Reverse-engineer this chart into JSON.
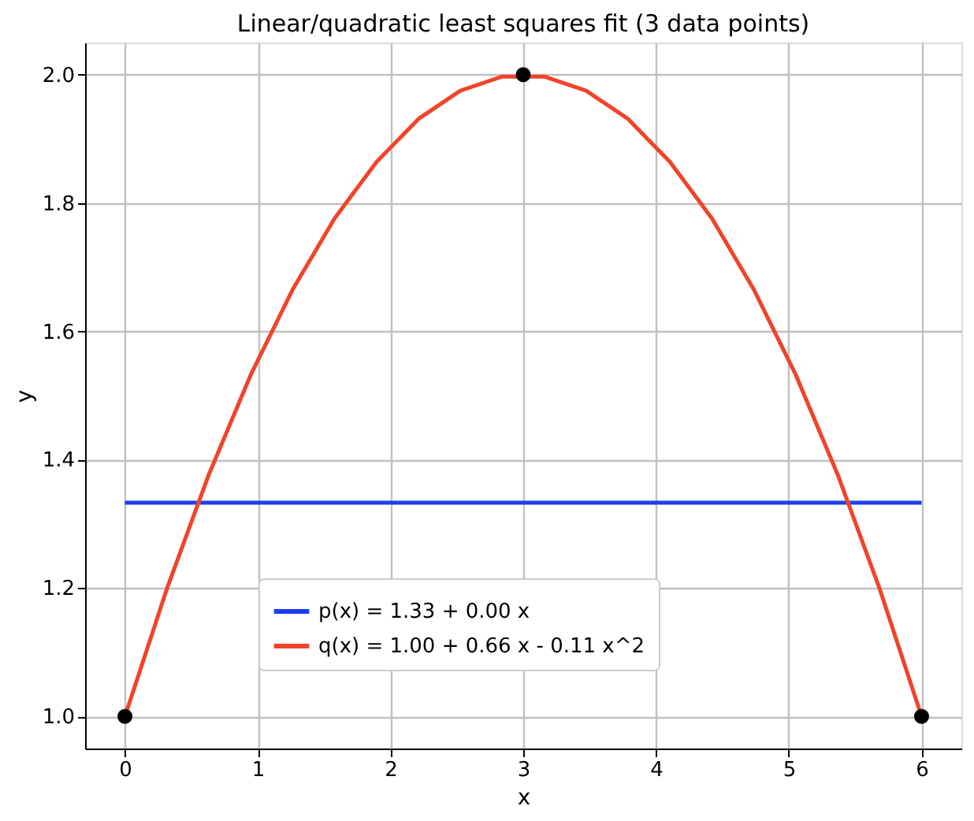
{
  "chart_data": {
    "type": "line",
    "title": "Linear/quadratic least squares fit (3 data points)",
    "xlabel": "x",
    "ylabel": "y",
    "xlim": [
      -0.3,
      6.3
    ],
    "ylim": [
      0.95,
      2.05
    ],
    "xticks": [
      0,
      1,
      2,
      3,
      4,
      5,
      6
    ],
    "yticks": [
      {
        "value": 1,
        "label": "1.0"
      },
      {
        "value": 1.2,
        "label": "1.2"
      },
      {
        "value": 1.4,
        "label": "1.4"
      },
      {
        "value": 1.6,
        "label": "1.6"
      },
      {
        "value": 1.8,
        "label": "1.8"
      },
      {
        "value": 2,
        "label": "2.0"
      }
    ],
    "grid": true,
    "legend": "bottom",
    "series": [
      {
        "name": "p(x) = 1.33 + 0.00 x",
        "color": "#1a3ff0",
        "x": [
          0,
          6
        ],
        "values": [
          1.333,
          1.333
        ]
      },
      {
        "name": "q(x) = 1.00 + 0.66 x - 0.11 x^2",
        "color": "#f0442a",
        "x": [
          0,
          0.316,
          0.632,
          0.947,
          1.263,
          1.579,
          1.895,
          2.211,
          2.526,
          2.842,
          3.158,
          3.474,
          3.789,
          4.105,
          4.421,
          4.737,
          5.053,
          5.368,
          5.684,
          6
        ],
        "values": [
          1.0,
          1.199,
          1.377,
          1.532,
          1.665,
          1.776,
          1.864,
          1.931,
          1.975,
          1.997,
          1.997,
          1.975,
          1.931,
          1.864,
          1.776,
          1.665,
          1.532,
          1.377,
          1.199,
          1.0
        ]
      },
      {
        "type": "scatter",
        "color": "#000000",
        "marker": "circle",
        "x": [
          0,
          3,
          6
        ],
        "values": [
          1,
          2,
          1
        ]
      }
    ]
  }
}
